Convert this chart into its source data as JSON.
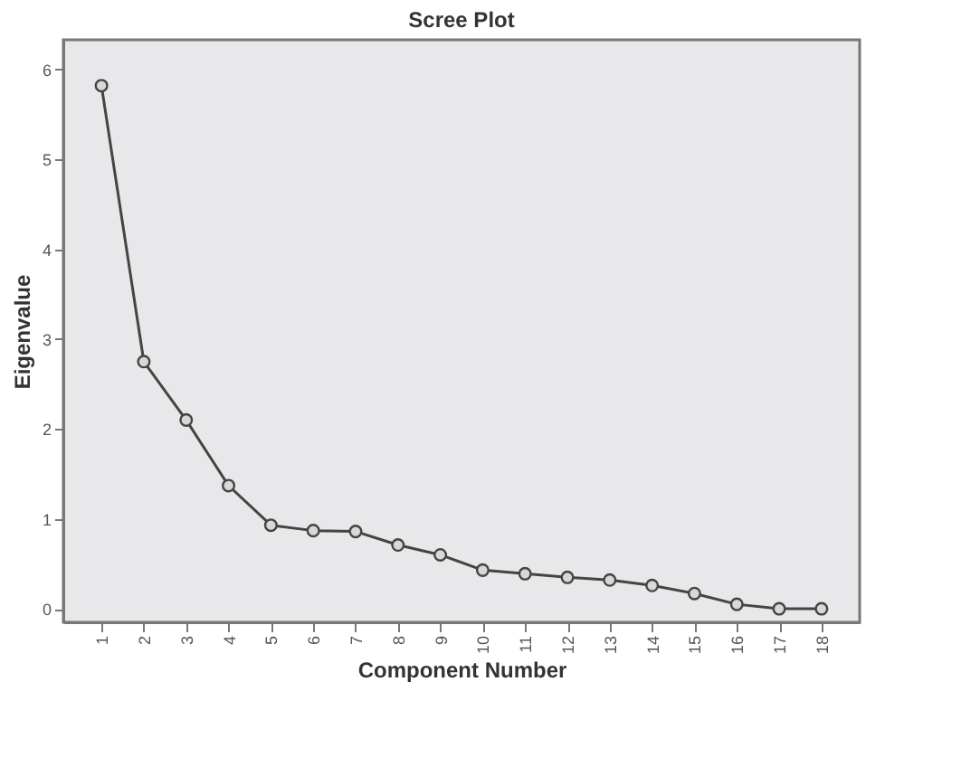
{
  "chart_data": {
    "type": "line",
    "title": "Scree Plot",
    "xlabel": "Component Number",
    "ylabel": "Eigenvalue",
    "categories": [
      "1",
      "2",
      "3",
      "4",
      "5",
      "6",
      "7",
      "8",
      "9",
      "10",
      "11",
      "12",
      "13",
      "14",
      "15",
      "16",
      "17",
      "18"
    ],
    "series": [
      {
        "color": "#444444",
        "values": [
          5.82,
          2.75,
          2.1,
          1.37,
          0.93,
          0.87,
          0.86,
          0.71,
          0.6,
          0.43,
          0.39,
          0.35,
          0.32,
          0.26,
          0.17,
          0.05,
          0.0,
          0.0
        ]
      }
    ],
    "ylim": [
      -0.15,
      6.33
    ],
    "yticks": [
      0,
      1,
      2,
      3,
      4,
      5,
      6
    ],
    "grid": false,
    "marker": "circle",
    "line_style": "solid"
  }
}
